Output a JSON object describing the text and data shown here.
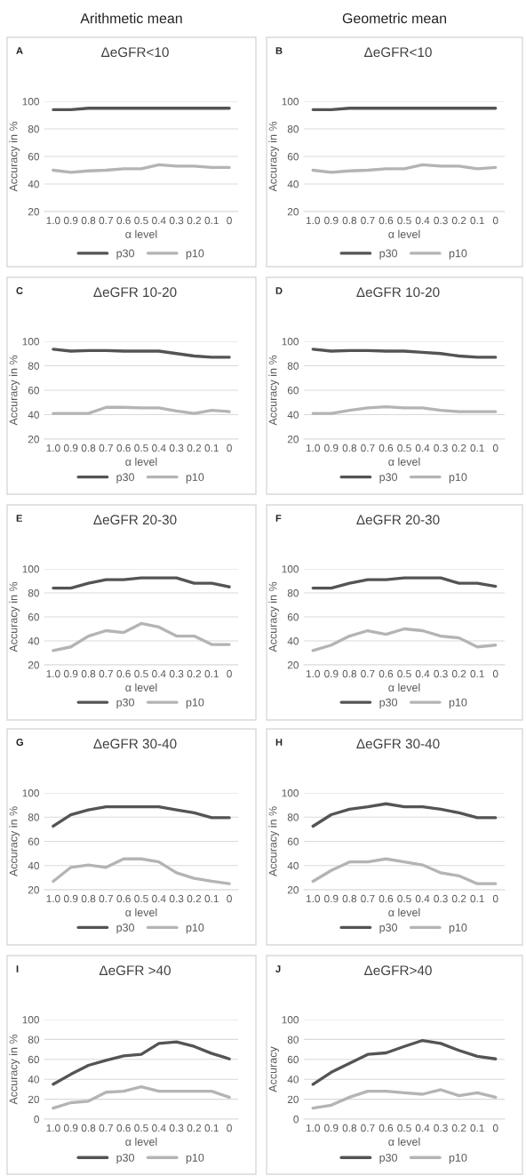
{
  "chart_data": [
    {
      "type": "line",
      "subtitle": "Arithmetic mean",
      "title": "ΔeGFR<10",
      "annotations": [
        "A"
      ],
      "xlabel": "α level",
      "ylabel": "Accuracy in %",
      "categories": [
        "1.0",
        "0.9",
        "0.8",
        "0.7",
        "0.6",
        "0.5",
        "0.4",
        "0.3",
        "0.2",
        "0.1",
        "0"
      ],
      "ylim": [
        20,
        100
      ],
      "yticks": [
        20,
        40,
        60,
        80,
        100
      ],
      "grid": "y",
      "legend": "bottom",
      "series": [
        {
          "name": "p30",
          "color": "#545454",
          "values": [
            94,
            94,
            95,
            95,
            95,
            95,
            95,
            95,
            95,
            95,
            95
          ]
        },
        {
          "name": "p10",
          "color": "#b4b4b4",
          "values": [
            50,
            48.5,
            49.5,
            50,
            51,
            51,
            54,
            53,
            53,
            52,
            52
          ]
        }
      ]
    },
    {
      "type": "line",
      "subtitle": "Geometric mean",
      "title": "ΔeGFR<10",
      "annotations": [
        "B"
      ],
      "xlabel": "α level",
      "ylabel": "Accuracy in %",
      "categories": [
        "1.0",
        "0.9",
        "0.8",
        "0.7",
        "0.6",
        "0.5",
        "0.4",
        "0.3",
        "0.2",
        "0.1",
        "0"
      ],
      "ylim": [
        20,
        100
      ],
      "yticks": [
        20,
        40,
        60,
        80,
        100
      ],
      "grid": "y",
      "legend": "bottom",
      "series": [
        {
          "name": "p30",
          "color": "#545454",
          "values": [
            94,
            94,
            95,
            95,
            95,
            95,
            95,
            95,
            95,
            95,
            95
          ]
        },
        {
          "name": "p10",
          "color": "#b4b4b4",
          "values": [
            50,
            48.5,
            49.5,
            50,
            51,
            51,
            54,
            53,
            53,
            51,
            52
          ]
        }
      ]
    },
    {
      "type": "line",
      "title": "ΔeGFR 10-20",
      "annotations": [
        "C"
      ],
      "xlabel": "α level",
      "ylabel": "Accuracy in %",
      "categories": [
        "1.0",
        "0.9",
        "0.8",
        "0.7",
        "0.6",
        "0.5",
        "0.4",
        "0.3",
        "0.2",
        "0.1",
        "0"
      ],
      "ylim": [
        20,
        100
      ],
      "yticks": [
        20,
        40,
        60,
        80,
        100
      ],
      "grid": "y",
      "legend": "bottom",
      "series": [
        {
          "name": "p30",
          "color": "#545454",
          "values": [
            93.5,
            92,
            92.5,
            92.5,
            92,
            92,
            92,
            90,
            88,
            87,
            87
          ]
        },
        {
          "name": "p10",
          "color": "#b4b4b4",
          "values": [
            41,
            41,
            41,
            46,
            46,
            45.5,
            45.5,
            43,
            41,
            43.5,
            42.5
          ]
        }
      ]
    },
    {
      "type": "line",
      "title": "ΔeGFR 10-20",
      "annotations": [
        "D"
      ],
      "xlabel": "α level",
      "ylabel": "Accuracy in %",
      "categories": [
        "1.0",
        "0.9",
        "0.8",
        "0.7",
        "0.6",
        "0.5",
        "0.4",
        "0.3",
        "0.2",
        "0.1",
        "0"
      ],
      "ylim": [
        20,
        100
      ],
      "yticks": [
        20,
        40,
        60,
        80,
        100
      ],
      "grid": "y",
      "legend": "bottom",
      "series": [
        {
          "name": "p30",
          "color": "#545454",
          "values": [
            93.5,
            92,
            92.5,
            92.5,
            92,
            92,
            91,
            90,
            88,
            87,
            87
          ]
        },
        {
          "name": "p10",
          "color": "#b4b4b4",
          "values": [
            41,
            41,
            43.5,
            45.5,
            46.5,
            45.5,
            45.5,
            43.5,
            42.5,
            42.5,
            42.5
          ]
        }
      ]
    },
    {
      "type": "line",
      "title": "ΔeGFR 20-30",
      "annotations": [
        "E"
      ],
      "xlabel": "α level",
      "ylabel": "Accuracy in %",
      "categories": [
        "1.0",
        "0.9",
        "0.8",
        "0.7",
        "0.6",
        "0.5",
        "0.4",
        "0.3",
        "0.2",
        "0.1",
        "0"
      ],
      "ylim": [
        20,
        100
      ],
      "yticks": [
        20,
        40,
        60,
        80,
        100
      ],
      "grid": "y",
      "legend": "bottom",
      "series": [
        {
          "name": "p30",
          "color": "#545454",
          "values": [
            84,
            84,
            88,
            91,
            91,
            92.5,
            92.5,
            92.5,
            88,
            88,
            85
          ]
        },
        {
          "name": "p10",
          "color": "#b4b4b4",
          "values": [
            32,
            35,
            44,
            48.5,
            47,
            54.5,
            51.5,
            44,
            44,
            37,
            37
          ]
        }
      ]
    },
    {
      "type": "line",
      "title": "ΔeGFR 20-30",
      "annotations": [
        "F"
      ],
      "xlabel": "α level",
      "ylabel": "Accuracy in %",
      "categories": [
        "1.0",
        "0.9",
        "0.8",
        "0.7",
        "0.6",
        "0.5",
        "0.4",
        "0.3",
        "0.2",
        "0.1",
        "0"
      ],
      "ylim": [
        20,
        100
      ],
      "yticks": [
        20,
        40,
        60,
        80,
        100
      ],
      "grid": "y",
      "legend": "bottom",
      "series": [
        {
          "name": "p30",
          "color": "#545454",
          "values": [
            84,
            84,
            88,
            91,
            91,
            92.5,
            92.5,
            92.5,
            88,
            88,
            85.5
          ]
        },
        {
          "name": "p10",
          "color": "#b4b4b4",
          "values": [
            32,
            36.5,
            44,
            48.5,
            45.5,
            50,
            48.5,
            44,
            42.5,
            35,
            36.5
          ]
        }
      ]
    },
    {
      "type": "line",
      "title": "ΔeGFR 30-40",
      "annotations": [
        "G"
      ],
      "xlabel": "α level",
      "ylabel": "Accuracy in %",
      "categories": [
        "1.0",
        "0.9",
        "0.8",
        "0.7",
        "0.6",
        "0.5",
        "0.4",
        "0.3",
        "0.2",
        "0.1",
        "0"
      ],
      "ylim": [
        20,
        100
      ],
      "yticks": [
        20,
        40,
        60,
        80,
        100
      ],
      "grid": "y",
      "legend": "bottom",
      "series": [
        {
          "name": "p30",
          "color": "#545454",
          "values": [
            72.5,
            82,
            86,
            88.5,
            88.5,
            88.5,
            88.5,
            86,
            83.5,
            79.5,
            79.5
          ]
        },
        {
          "name": "p10",
          "color": "#b4b4b4",
          "values": [
            27,
            38.5,
            40.5,
            38.5,
            45.5,
            45.5,
            43,
            34,
            29.5,
            27,
            25
          ]
        }
      ]
    },
    {
      "type": "line",
      "title": "ΔeGFR 30-40",
      "annotations": [
        "H"
      ],
      "xlabel": "α level",
      "ylabel": "Accuracy in %",
      "categories": [
        "1.0",
        "0.9",
        "0.8",
        "0.7",
        "0.6",
        "0.5",
        "0.4",
        "0.3",
        "0.2",
        "0.1",
        "0"
      ],
      "ylim": [
        20,
        100
      ],
      "yticks": [
        20,
        40,
        60,
        80,
        100
      ],
      "grid": "y",
      "legend": "bottom",
      "series": [
        {
          "name": "p30",
          "color": "#545454",
          "values": [
            72.5,
            82,
            86.5,
            88.5,
            91,
            88.5,
            88.5,
            86.5,
            83.5,
            79.5,
            79.5
          ]
        },
        {
          "name": "p10",
          "color": "#b4b4b4",
          "values": [
            27,
            36,
            43,
            43,
            45.5,
            43,
            40.5,
            34,
            31.5,
            25,
            25
          ]
        }
      ]
    },
    {
      "type": "line",
      "title": "ΔeGFR >40",
      "annotations": [
        "I"
      ],
      "xlabel": "α level",
      "ylabel": "Accuracy in %",
      "categories": [
        "1.0",
        "0.9",
        "0.8",
        "0.7",
        "0.6",
        "0.5",
        "0.4",
        "0.3",
        "0.2",
        "0.1",
        "0"
      ],
      "ylim": [
        0,
        100
      ],
      "yticks": [
        0,
        20,
        40,
        60,
        80,
        100
      ],
      "grid": "y",
      "legend": "bottom",
      "series": [
        {
          "name": "p30",
          "color": "#545454",
          "values": [
            35,
            45,
            54,
            59,
            63.5,
            65,
            76,
            77.5,
            73,
            66,
            60.5
          ]
        },
        {
          "name": "p10",
          "color": "#b4b4b4",
          "values": [
            11,
            16.5,
            18,
            27,
            28,
            32.5,
            28,
            28,
            28,
            28,
            22
          ]
        }
      ]
    },
    {
      "type": "line",
      "title": "ΔeGFR>40",
      "annotations": [
        "J"
      ],
      "xlabel": "α level",
      "ylabel": "Accuracy",
      "categories": [
        "1.0",
        "0.9",
        "0.8",
        "0.7",
        "0.6",
        "0.5",
        "0.4",
        "0.3",
        "0.2",
        "0.1",
        "0"
      ],
      "ylim": [
        0,
        100
      ],
      "yticks": [
        0,
        20,
        40,
        60,
        80,
        100
      ],
      "grid": "y",
      "legend": "bottom",
      "series": [
        {
          "name": "p30",
          "color": "#545454",
          "values": [
            35,
            47,
            56,
            65,
            66.5,
            73,
            79,
            76,
            69,
            63,
            60.5
          ]
        },
        {
          "name": "p10",
          "color": "#b4b4b4",
          "values": [
            11,
            14,
            22,
            28,
            28,
            26.5,
            25,
            29.5,
            23.5,
            26.5,
            22
          ]
        }
      ]
    }
  ]
}
